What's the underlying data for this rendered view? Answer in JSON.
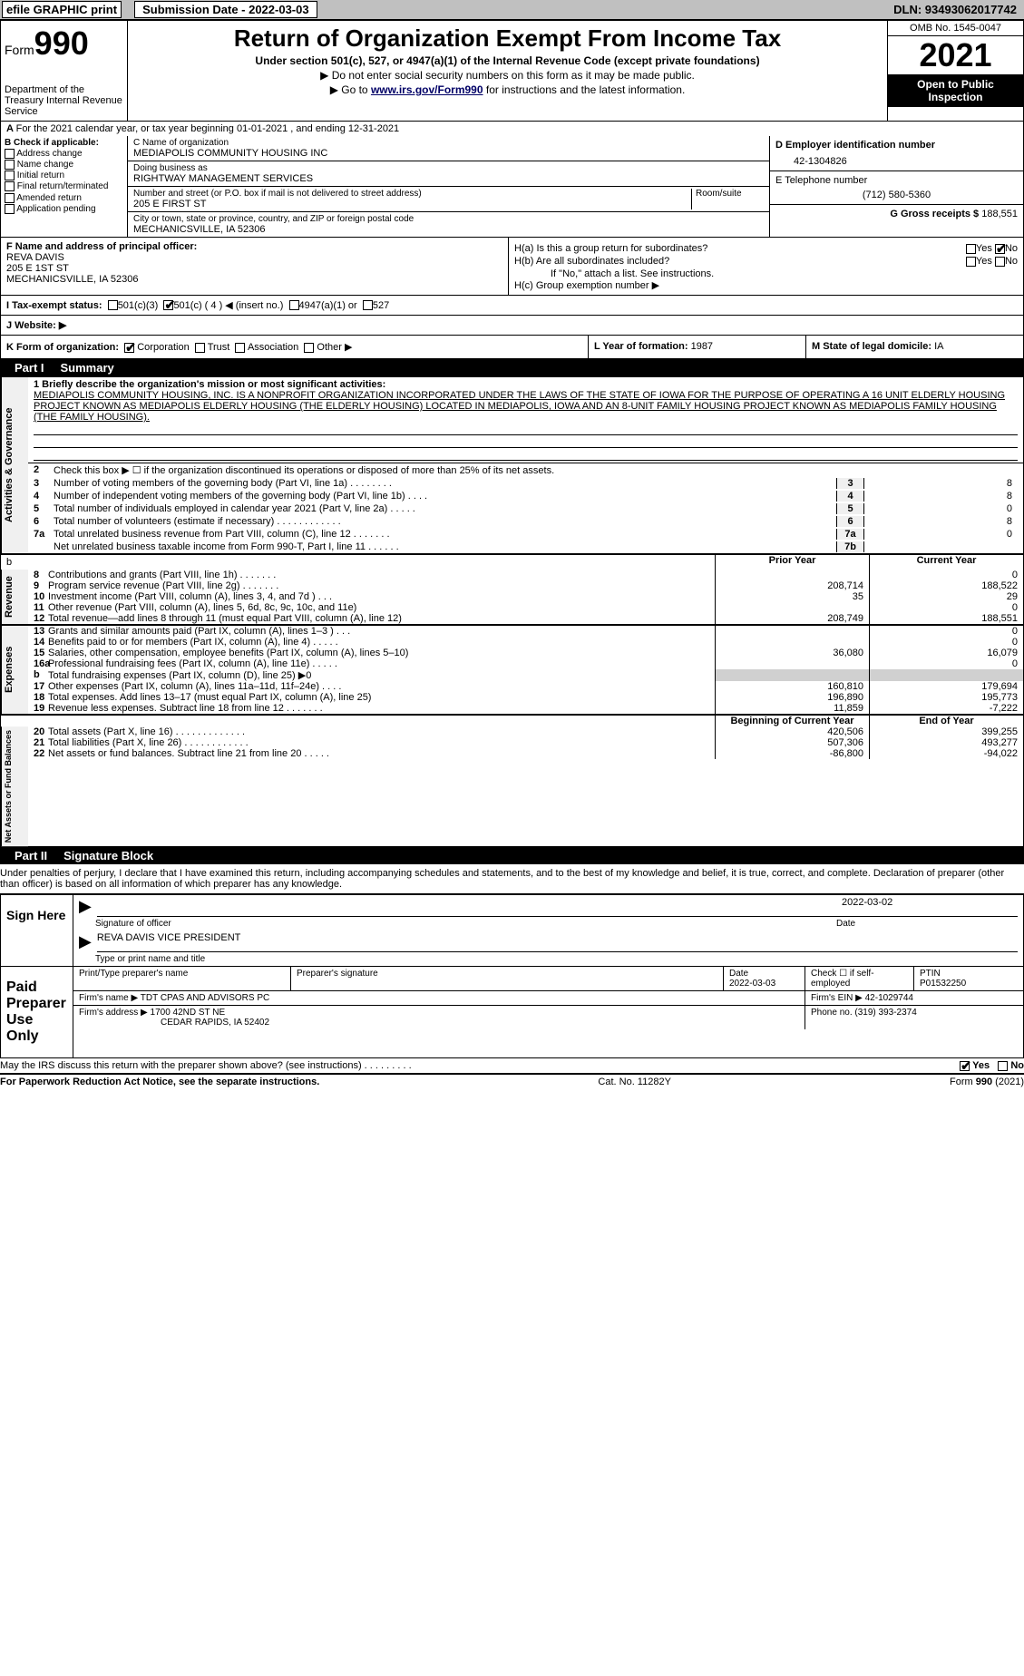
{
  "header": {
    "efile": "efile GRAPHIC print",
    "submission": "Submission Date - 2022-03-03",
    "dln": "DLN: 93493062017742"
  },
  "form": {
    "label": "Form",
    "number": "990",
    "title": "Return of Organization Exempt From Income Tax",
    "subtitle": "Under section 501(c), 527, or 4947(a)(1) of the Internal Revenue Code (except private foundations)",
    "instr1": "▶ Do not enter social security numbers on this form as it may be made public.",
    "instr2_pre": "▶ Go to ",
    "instr2_link": "www.irs.gov/Form990",
    "instr2_post": " for instructions and the latest information.",
    "dept": "Department of the Treasury Internal Revenue Service",
    "omb": "OMB No. 1545-0047",
    "year": "2021",
    "open_public": "Open to Public Inspection"
  },
  "a": {
    "text": "For the 2021 calendar year, or tax year beginning 01-01-2021     , and ending 12-31-2021"
  },
  "b": {
    "header": "B Check if applicable:",
    "items": [
      "Address change",
      "Name change",
      "Initial return",
      "Final return/terminated",
      "Amended return",
      "Application pending"
    ]
  },
  "c": {
    "name_label": "C Name of organization",
    "name": "MEDIAPOLIS COMMUNITY HOUSING INC",
    "dba_label": "Doing business as",
    "dba": "RIGHTWAY MANAGEMENT SERVICES",
    "addr_label": "Number and street (or P.O. box if mail is not delivered to street address)",
    "room_label": "Room/suite",
    "addr": "205 E FIRST ST",
    "city_label": "City or town, state or province, country, and ZIP or foreign postal code",
    "city": "MECHANICSVILLE, IA  52306"
  },
  "d": {
    "label": "D Employer identification number",
    "value": "42-1304826"
  },
  "e": {
    "label": "E Telephone number",
    "value": "(712) 580-5360"
  },
  "g": {
    "label": "G Gross receipts $",
    "value": "188,551"
  },
  "f": {
    "label": "F  Name and address of principal officer:",
    "name": "REVA DAVIS",
    "addr": "205 E 1ST ST",
    "city": "MECHANICSVILLE, IA  52306"
  },
  "h": {
    "a_label": "H(a)  Is this a group return for subordinates?",
    "b_label": "H(b)  Are all subordinates included?",
    "b_note": "If \"No,\" attach a list. See instructions.",
    "c_label": "H(c)  Group exemption number ▶",
    "yes": "Yes",
    "no": "No"
  },
  "i": {
    "label": "I  Tax-exempt status:",
    "opts": [
      "501(c)(3)",
      "501(c) ( 4 ) ◀ (insert no.)",
      "4947(a)(1) or",
      "527"
    ]
  },
  "j": {
    "label": "J  Website: ▶"
  },
  "k": {
    "label": "K Form of organization:",
    "opts": [
      "Corporation",
      "Trust",
      "Association",
      "Other ▶"
    ]
  },
  "l": {
    "label": "L Year of formation:",
    "value": "1987"
  },
  "m": {
    "label": "M State of legal domicile:",
    "value": "IA"
  },
  "part1": {
    "header": "Part I",
    "title": "Summary",
    "q1_label": "1 Briefly describe the organization's mission or most significant activities:",
    "mission": "MEDIAPOLIS COMMUNITY HOUSING, INC. IS A NONPROFIT ORGANIZATION INCORPORATED UNDER THE LAWS OF THE STATE OF IOWA FOR THE PURPOSE OF OPERATING A 16 UNIT ELDERLY HOUSING PROJECT KNOWN AS MEDIAPOLIS ELDERLY HOUSING (THE ELDERLY HOUSING) LOCATED IN MEDIAPOLIS, IOWA AND AN 8-UNIT FAMILY HOUSING PROJECT KNOWN AS MEDIAPOLIS FAMILY HOUSING (THE FAMILY HOUSING).",
    "q2": "Check this box ▶ ☐ if the organization discontinued its operations or disposed of more than 25% of its net assets.",
    "gov_rows": [
      {
        "n": "3",
        "t": "Number of voting members of the governing body (Part VI, line 1a)  .  .  .  .  .  .  .  .",
        "nc": "3",
        "v": "8"
      },
      {
        "n": "4",
        "t": "Number of independent voting members of the governing body (Part VI, line 1b)  .  .  .  .",
        "nc": "4",
        "v": "8"
      },
      {
        "n": "5",
        "t": "Total number of individuals employed in calendar year 2021 (Part V, line 2a)  .  .  .  .  .",
        "nc": "5",
        "v": "0"
      },
      {
        "n": "6",
        "t": "Total number of volunteers (estimate if necessary)   .  .  .  .  .  .  .  .  .  .  .  .",
        "nc": "6",
        "v": "8"
      },
      {
        "n": "7a",
        "t": "Total unrelated business revenue from Part VIII, column (C), line 12  .  .  .  .  .  .  .",
        "nc": "7a",
        "v": "0"
      },
      {
        "n": "",
        "t": "Net unrelated business taxable income from Form 990-T, Part I, line 11  .  .  .  .  .  .",
        "nc": "7b",
        "v": ""
      }
    ],
    "prior_year": "Prior Year",
    "current_year": "Current Year",
    "revenue_label": "Revenue",
    "revenue_rows": [
      {
        "n": "8",
        "t": "Contributions and grants (Part VIII, line 1h)  .  .  .  .  .  .  .",
        "p": "",
        "c": "0"
      },
      {
        "n": "9",
        "t": "Program service revenue (Part VIII, line 2g)  .  .  .  .  .  .  .",
        "p": "208,714",
        "c": "188,522"
      },
      {
        "n": "10",
        "t": "Investment income (Part VIII, column (A), lines 3, 4, and 7d )  .  .  .",
        "p": "35",
        "c": "29"
      },
      {
        "n": "11",
        "t": "Other revenue (Part VIII, column (A), lines 5, 6d, 8c, 9c, 10c, and 11e)",
        "p": "",
        "c": "0"
      },
      {
        "n": "12",
        "t": "Total revenue—add lines 8 through 11 (must equal Part VIII, column (A), line 12)",
        "p": "208,749",
        "c": "188,551"
      }
    ],
    "expenses_label": "Expenses",
    "expenses_rows": [
      {
        "n": "13",
        "t": "Grants and similar amounts paid (Part IX, column (A), lines 1–3 )   .   .   .",
        "p": "",
        "c": "0"
      },
      {
        "n": "14",
        "t": "Benefits paid to or for members (Part IX, column (A), line 4)  .  .  .  .  .",
        "p": "",
        "c": "0"
      },
      {
        "n": "15",
        "t": "Salaries, other compensation, employee benefits (Part IX, column (A), lines 5–10)",
        "p": "36,080",
        "c": "16,079"
      },
      {
        "n": "16a",
        "t": "Professional fundraising fees (Part IX, column (A), line 11e)  .  .  .  .  .",
        "p": "",
        "c": "0"
      },
      {
        "n": "b",
        "t": "Total fundraising expenses (Part IX, column (D), line 25) ▶0",
        "p": "gray",
        "c": "gray"
      },
      {
        "n": "17",
        "t": "Other expenses (Part IX, column (A), lines 11a–11d, 11f–24e)  .  .  .  .",
        "p": "160,810",
        "c": "179,694"
      },
      {
        "n": "18",
        "t": "Total expenses. Add lines 13–17 (must equal Part IX, column (A), line 25)",
        "p": "196,890",
        "c": "195,773"
      },
      {
        "n": "19",
        "t": "Revenue less expenses. Subtract line 18 from line 12  .  .  .  .  .  .  .",
        "p": "11,859",
        "c": "-7,222"
      }
    ],
    "netassets_label": "Net Assets or Fund Balances",
    "begin_year": "Beginning of Current Year",
    "end_year": "End of Year",
    "netassets_rows": [
      {
        "n": "20",
        "t": "Total assets (Part X, line 16)  .  .  .  .  .  .  .  .  .  .  .  .  .",
        "p": "420,506",
        "c": "399,255"
      },
      {
        "n": "21",
        "t": "Total liabilities (Part X, line 26)  .  .  .  .  .  .  .  .  .  .  .  .",
        "p": "507,306",
        "c": "493,277"
      },
      {
        "n": "22",
        "t": "Net assets or fund balances. Subtract line 21 from line 20  .  .  .  .  .",
        "p": "-86,800",
        "c": "-94,022"
      }
    ],
    "activities_label": "Activities & Governance"
  },
  "part2": {
    "header": "Part II",
    "title": "Signature Block",
    "penalty": "Under penalties of perjury, I declare that I have examined this return, including accompanying schedules and statements, and to the best of my knowledge and belief, it is true, correct, and complete. Declaration of preparer (other than officer) is based on all information of which preparer has any knowledge.",
    "sign_here": "Sign Here",
    "sig_officer": "Signature of officer",
    "sig_date": "2022-03-02",
    "date_label": "Date",
    "officer_name": "REVA DAVIS  VICE PRESIDENT",
    "officer_label": "Type or print name and title",
    "paid_label": "Paid Preparer Use Only",
    "prep_name_label": "Print/Type preparer's name",
    "prep_sig_label": "Preparer's signature",
    "prep_date_label": "Date",
    "prep_date": "2022-03-03",
    "check_self": "Check ☐ if self-employed",
    "ptin_label": "PTIN",
    "ptin": "P01532250",
    "firm_name_label": "Firm's name     ▶",
    "firm_name": "TDT CPAS AND ADVISORS PC",
    "firm_ein_label": "Firm's EIN ▶",
    "firm_ein": "42-1029744",
    "firm_addr_label": "Firm's address ▶",
    "firm_addr1": "1700 42ND ST NE",
    "firm_addr2": "CEDAR RAPIDS, IA  52402",
    "phone_label": "Phone no.",
    "phone": "(319) 393-2374",
    "may_irs": "May the IRS discuss this return with the preparer shown above? (see instructions)  .  .  .  .  .  .  .  .  .",
    "yes": "Yes",
    "no": "No"
  },
  "footer": {
    "paperwork": "For Paperwork Reduction Act Notice, see the separate instructions.",
    "cat": "Cat. No. 11282Y",
    "form": "Form 990 (2021)"
  }
}
